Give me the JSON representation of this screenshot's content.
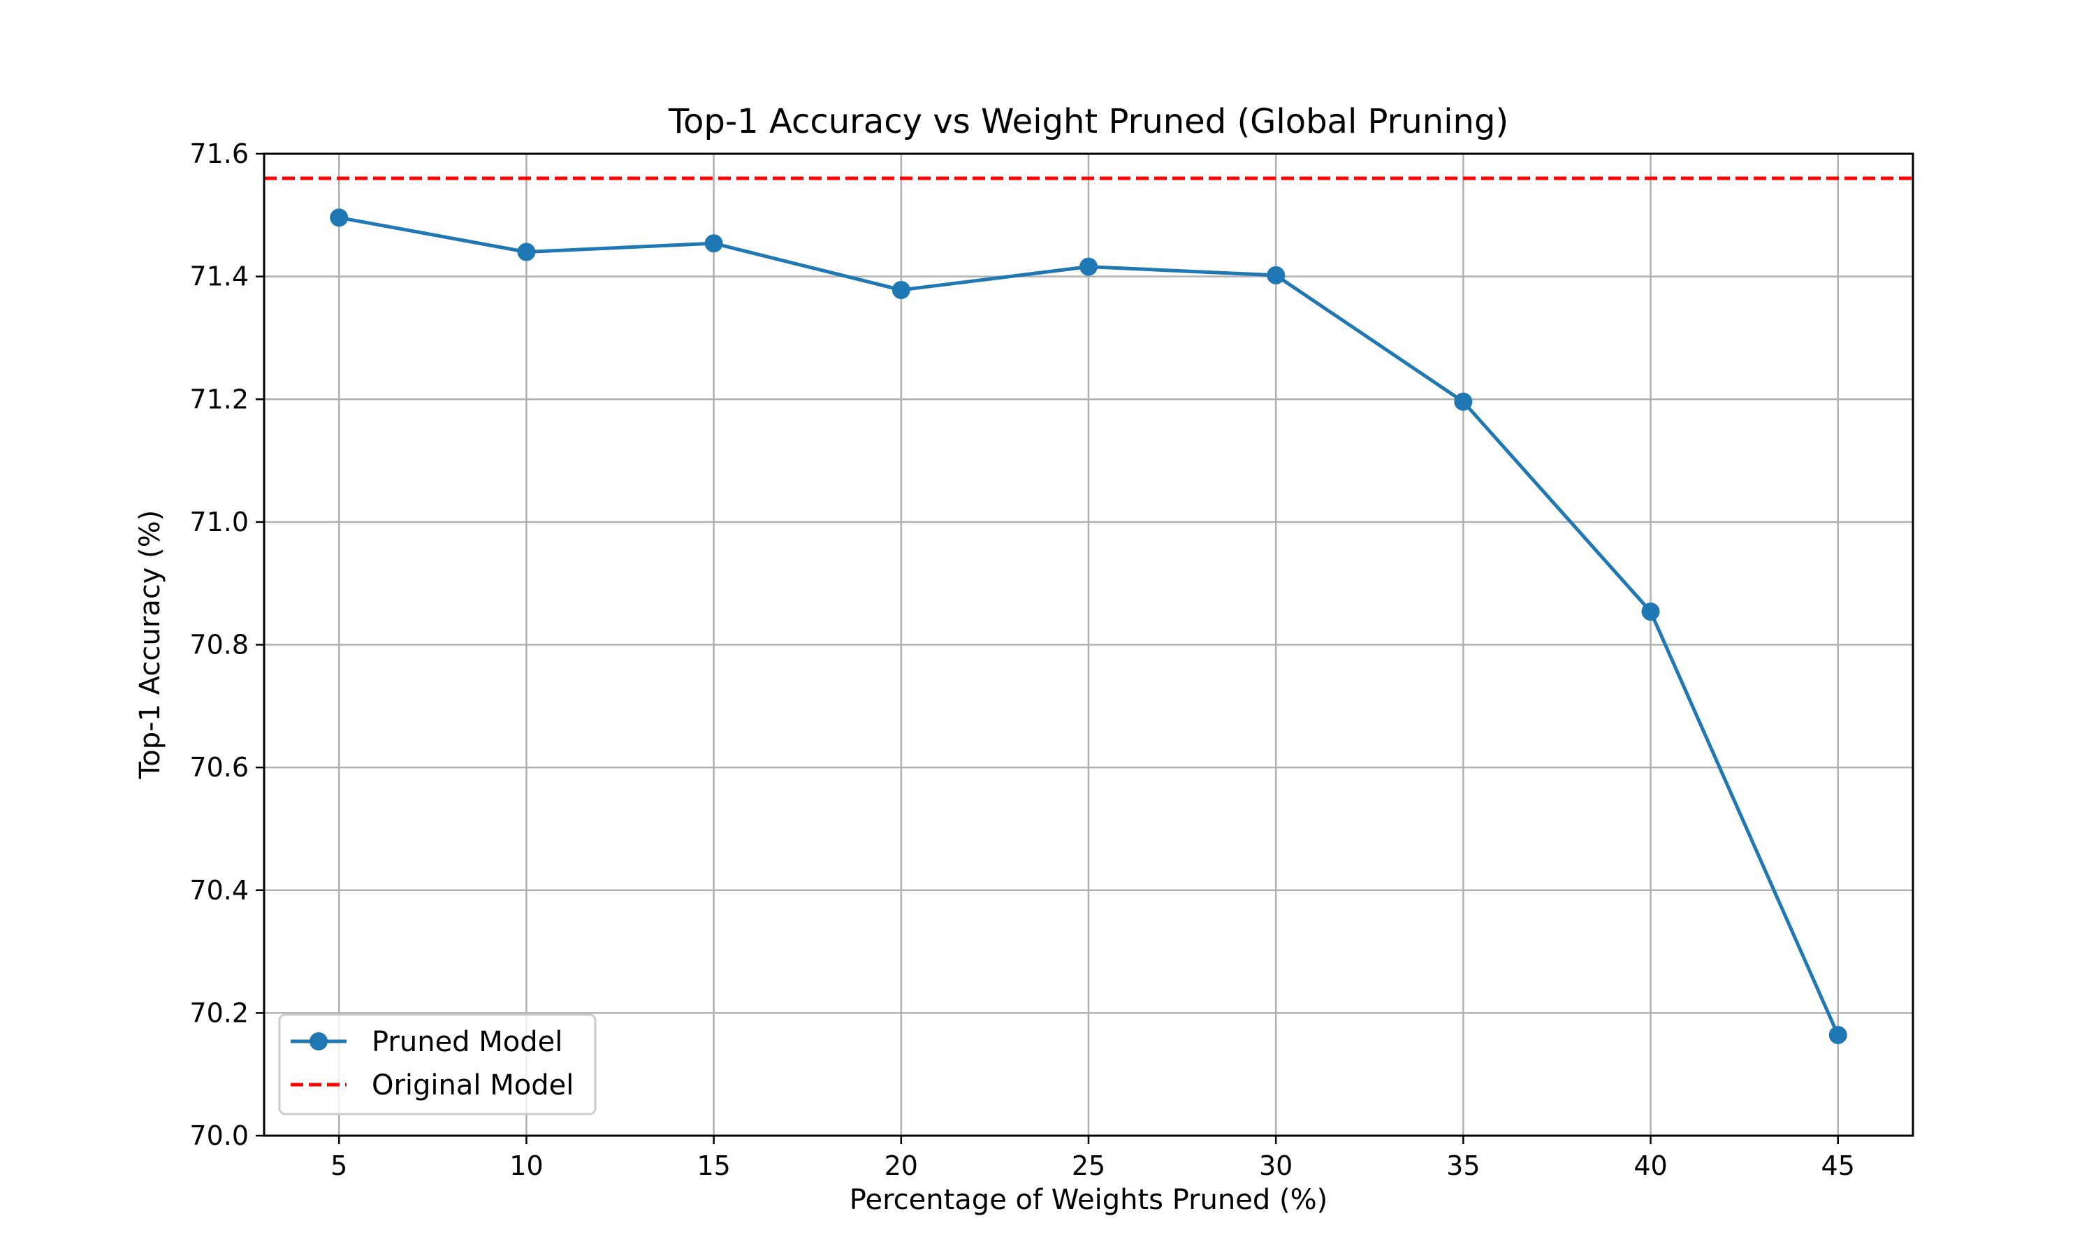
{
  "chart_data": {
    "type": "line",
    "title": "Top-1 Accuracy vs Weight Pruned (Global Pruning)",
    "xlabel": "Percentage of Weights Pruned (%)",
    "ylabel": "Top-1 Accuracy (%)",
    "x": [
      5,
      10,
      15,
      20,
      25,
      30,
      35,
      40,
      45
    ],
    "xlim": [
      3,
      47
    ],
    "ylim": [
      70.0,
      71.6
    ],
    "xticks": [
      "5",
      "10",
      "15",
      "20",
      "25",
      "30",
      "35",
      "40",
      "45"
    ],
    "yticks": [
      "70.0",
      "70.2",
      "70.4",
      "70.6",
      "70.8",
      "71.0",
      "71.2",
      "71.4",
      "71.6"
    ],
    "grid": true,
    "legend_position": "lower-left",
    "series": [
      {
        "name": "Pruned Model",
        "values": [
          71.496,
          71.44,
          71.454,
          71.378,
          71.416,
          71.402,
          71.196,
          70.854,
          70.164
        ],
        "color": "#1f77b4",
        "style": "solid",
        "marker": "circle"
      }
    ],
    "reference_lines": [
      {
        "name": "Original Model",
        "y": 71.56,
        "color": "#ff0000",
        "style": "dashed"
      }
    ]
  }
}
